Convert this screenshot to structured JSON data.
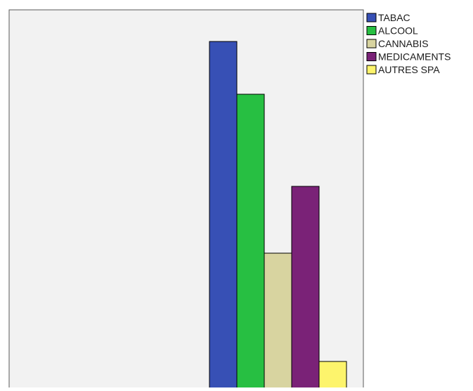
{
  "chart_data": {
    "type": "bar",
    "categories": [
      "TABAC",
      "ALCOOL",
      "CANNABIS",
      "MEDICAMENTS",
      "AUTRES SPA"
    ],
    "series": [
      {
        "values": [
          501,
          426,
          200,
          295,
          46
        ],
        "colors": [
          "#3750b5",
          "#27bf42",
          "#d8d4a0",
          "#7a2277",
          "#fdf46c"
        ]
      }
    ],
    "ylim": [
      0,
      546
    ],
    "grid": false,
    "legend_position": "top-right",
    "plot_background": "#f2f2f2",
    "bar_stroke": "#000000"
  }
}
